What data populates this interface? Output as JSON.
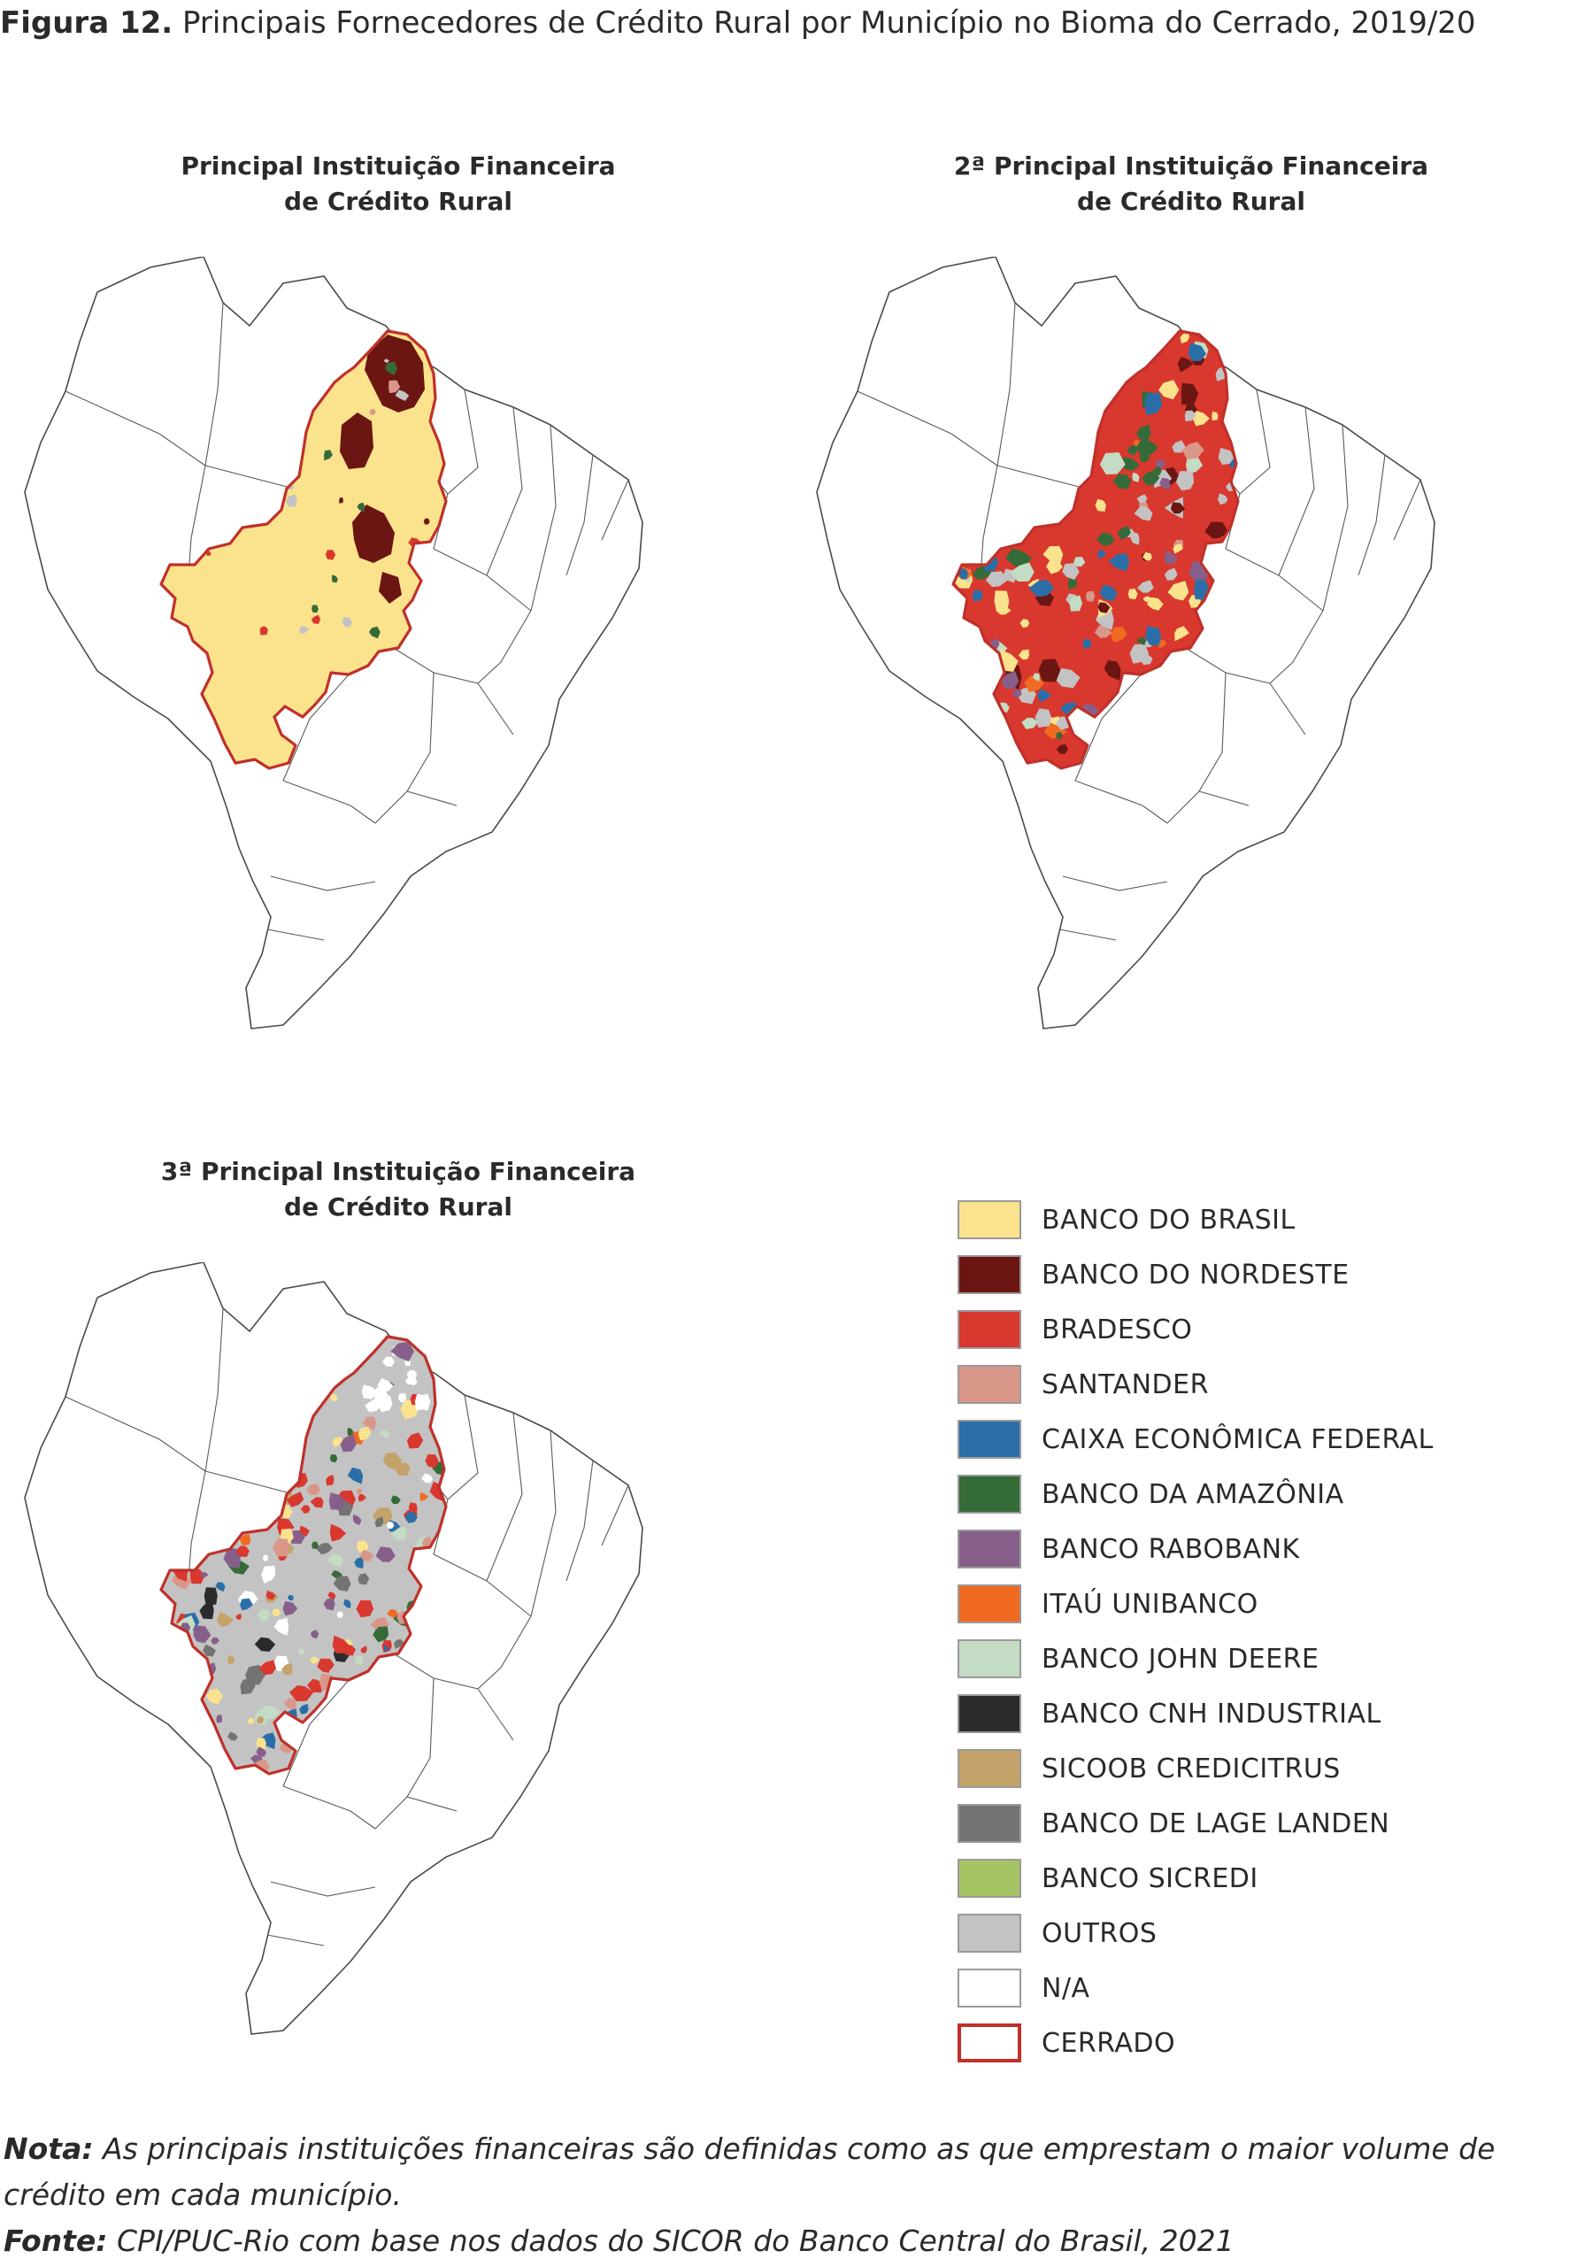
{
  "figure": {
    "label": "Figura 12.",
    "title": "Principais Fornecedores de Crédito Rural por Município no Bioma do Cerrado, 2019/20"
  },
  "panels": [
    {
      "title_line1": "Principal Instituição Financeira",
      "title_line2": "de Crédito Rural"
    },
    {
      "title_line1": "2ª Principal Instituição Financeira",
      "title_line2": "de Crédito Rural"
    },
    {
      "title_line1": "3ª Principal Instituição Financeira",
      "title_line2": "de Crédito Rural"
    }
  ],
  "legend": {
    "items": [
      {
        "label": "BANCO DO BRASIL",
        "color": "#fbe38d"
      },
      {
        "label": "BANCO DO NORDESTE",
        "color": "#6b1612"
      },
      {
        "label": "BRADESCO",
        "color": "#d9382e"
      },
      {
        "label": "SANTANDER",
        "color": "#d9978a"
      },
      {
        "label": "CAIXA ECONÔMICA FEDERAL",
        "color": "#2a6ea8"
      },
      {
        "label": "BANCO DA AMAZÔNIA",
        "color": "#356b38"
      },
      {
        "label": "BANCO RABOBANK",
        "color": "#86608a"
      },
      {
        "label": "ITAÚ UNIBANCO",
        "color": "#f06a22"
      },
      {
        "label": "BANCO JOHN DEERE",
        "color": "#c3dcc3"
      },
      {
        "label": "BANCO CNH INDUSTRIAL",
        "color": "#2b2b2b"
      },
      {
        "label": "SICOOB CREDICITRUS",
        "color": "#c3a36a"
      },
      {
        "label": "BANCO DE LAGE LANDEN",
        "color": "#737373"
      },
      {
        "label": "BANCO SICREDI",
        "color": "#a6c463"
      },
      {
        "label": "OUTROS",
        "color": "#c3c3c3"
      },
      {
        "label": "N/A",
        "color": "#ffffff"
      },
      {
        "label": "CERRADO",
        "color": "#ffffff",
        "border": "#c0302a"
      }
    ]
  },
  "note": {
    "nota_label": "Nota:",
    "nota_text": "As principais instituições financeiras são definidas como as que emprestam o maior volume de crédito em cada município.",
    "fonte_label": "Fonte:",
    "fonte_text": "CPI/PUC-Rio com base nos dados do SICOR do Banco Central do Brasil, 2021"
  }
}
